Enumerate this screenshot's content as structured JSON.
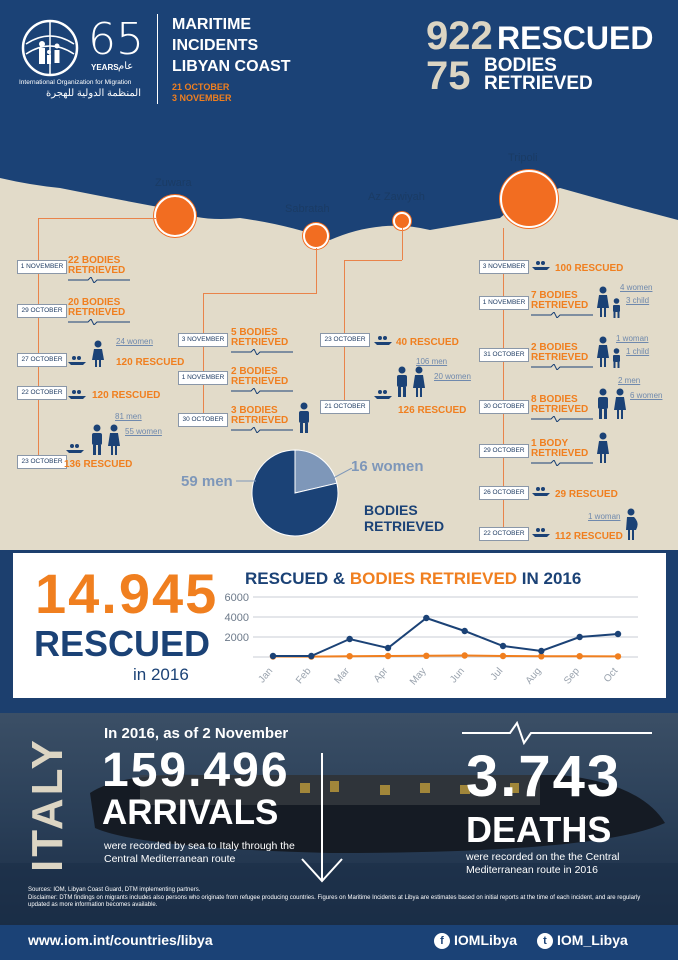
{
  "header": {
    "logo_number": "65",
    "logo_years": "YEARS",
    "logo_years_ar": "عام",
    "org_en": "International Organization for Migration",
    "org_ar": "المنظمة الدولية للهجرة",
    "title_line1": "MARITIME",
    "title_line2": "INCIDENTS",
    "title_line3": "LIBYAN COAST",
    "date_from": "21 OCTOBER",
    "date_to": "3 NOVEMBER",
    "rescued_num": "922",
    "rescued_lbl": "RESCUED",
    "bodies_num": "75",
    "bodies_lbl1": "BODIES",
    "bodies_lbl2": "RETRIEVED"
  },
  "cities": {
    "zuwara": "Zuwara",
    "sabratah": "Sabratah",
    "azzawiyah": "Az Zawiyah",
    "tripoli": "Tripoli"
  },
  "events": {
    "zuwara": [
      {
        "date": "1 NOVEMBER",
        "l1": "22 BODIES",
        "l2": "RETRIEVED"
      },
      {
        "date": "29 OCTOBER",
        "l1": "20 BODIES",
        "l2": "RETRIEVED"
      },
      {
        "date": "27 OCTOBER",
        "l1": "120 RESCUED",
        "sub": "24 women"
      },
      {
        "date": "22 OCTOBER",
        "l1": "120 RESCUED"
      },
      {
        "date": "23 OCTOBER",
        "l1": "136 RESCUED",
        "sub1": "81 men",
        "sub2": "55 women"
      }
    ],
    "sabratah": [
      {
        "date": "3 NOVEMBER",
        "l1": "5 BODIES",
        "l2": "RETRIEVED"
      },
      {
        "date": "1 NOVEMBER",
        "l1": "2 BODIES",
        "l2": "RETRIEVED"
      },
      {
        "date": "30 OCTOBER",
        "l1": "3 BODIES",
        "l2": "RETRIEVED"
      }
    ],
    "azzawiyah": [
      {
        "date": "23 OCTOBER",
        "l1": "40 RESCUED"
      },
      {
        "date": "21 OCTOBER",
        "l1": "126 RESCUED",
        "sub1": "106 men",
        "sub2": "20 women"
      }
    ],
    "tripoli": [
      {
        "date": "3 NOVEMBER",
        "l1": "100 RESCUED"
      },
      {
        "date": "1 NOVEMBER",
        "l1": "7 BODIES",
        "l2": "RETRIEVED",
        "sub1": "4 women",
        "sub2": "3 child"
      },
      {
        "date": "31 OCTOBER",
        "l1": "2 BODIES",
        "l2": "RETRIEVED",
        "sub1": "1 woman",
        "sub2": "1 child"
      },
      {
        "date": "30 OCTOBER",
        "l1": "8 BODIES",
        "l2": "RETRIEVED",
        "sub1": "2 men",
        "sub2": "6 women"
      },
      {
        "date": "29 OCTOBER",
        "l1": "1 BODY",
        "l2": "RETRIEVED"
      },
      {
        "date": "26 OCTOBER",
        "l1": "29 RESCUED"
      },
      {
        "date": "22 OCTOBER",
        "l1": "112 RESCUED",
        "sub": "1 woman"
      }
    ]
  },
  "pie": {
    "men_label": "59 men",
    "women_label": "16 women",
    "title1": "BODIES",
    "title2": "RETRIEVED",
    "men": 59,
    "women": 16,
    "men_color": "#1b4276",
    "women_color": "#7e97b9"
  },
  "panel": {
    "big_num": "14.945",
    "rescued": "RESCUED",
    "in_year": "in 2016",
    "chart_title_a": "RESCUED &",
    "chart_title_b": "BODIES RETRIEVED",
    "chart_title_c": "IN 2016"
  },
  "chart_data": {
    "type": "line",
    "title": "RESCUED & BODIES RETRIEVED IN 2016",
    "categories": [
      "Jan",
      "Feb",
      "Mar",
      "Apr",
      "May",
      "Jun",
      "Jul",
      "Aug",
      "Sep",
      "Oct"
    ],
    "ylim": [
      0,
      6000
    ],
    "yticks": [
      2000,
      4000,
      6000
    ],
    "grid": true,
    "series": [
      {
        "name": "RESCUED",
        "color": "#1b4276",
        "values": [
          100,
          100,
          1800,
          900,
          3900,
          2600,
          1100,
          600,
          2000,
          2300
        ]
      },
      {
        "name": "BODIES RETRIEVED",
        "color": "#f07f1f",
        "values": [
          50,
          40,
          80,
          100,
          120,
          150,
          100,
          70,
          80,
          60
        ]
      }
    ]
  },
  "italy": {
    "word": "ITALY",
    "sub": "In 2016, as of 2 November",
    "arrivals_num": "159.496",
    "arrivals_lbl": "ARRIVALS",
    "arrivals_note": "were recorded by sea to Italy through the Central Mediterranean route",
    "deaths_num": "3.743",
    "deaths_lbl": "DEATHS",
    "deaths_note": "were recorded on the the Central Mediterranean route in 2016",
    "sources": "Sources: IOM, Libyan Coast Guard, DTM implementing partners.",
    "disclaimer": "Disclaimer: DTM findings on migrants includes also persons who originate from refugee producing countries. Figures on Maritime Incidents at Libya are estimates based on initial reports at the time of each incident, and are regularly updated as more information becomes available."
  },
  "footer": {
    "url": "www.iom.int/countries/libya",
    "facebook": "IOMLibya",
    "twitter": "IOM_Libya"
  }
}
